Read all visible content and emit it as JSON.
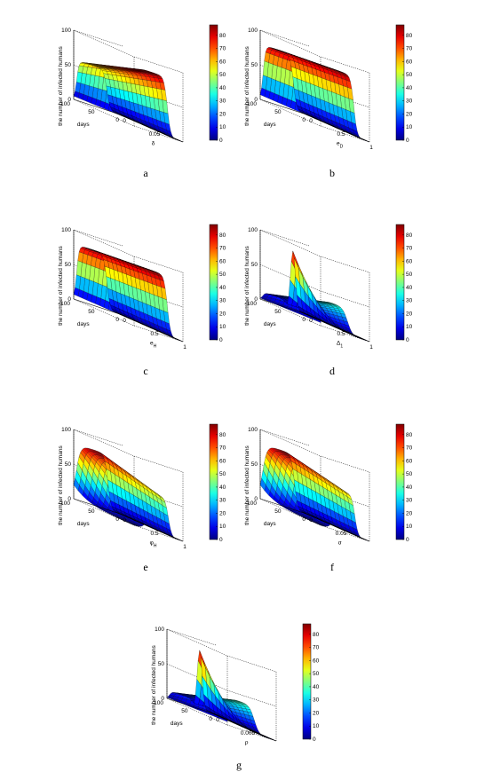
{
  "chart_data": [
    {
      "type": "surface",
      "panel": "a",
      "zlabel": "the number of infected humans",
      "xlabel": "days",
      "ylabel": "δ",
      "ylabel_sub": "",
      "x_ticks": [
        "0",
        "50",
        "100"
      ],
      "y_ticks": [
        "0",
        "0.05"
      ],
      "z_ticks": [
        "0",
        "50",
        "100"
      ],
      "xlim": [
        0,
        100
      ],
      "ylim": [
        0,
        0.1
      ],
      "zlim": [
        0,
        100
      ],
      "colorbar_ticks": [
        0,
        10,
        20,
        30,
        40,
        50,
        60,
        70,
        80
      ],
      "colorbar_range": [
        0,
        88
      ],
      "surface": {
        "peak_at_y0": 58,
        "peak_at_y1": 86,
        "mode": "ramp"
      }
    },
    {
      "type": "surface",
      "panel": "b",
      "zlabel": "the number of infected humans",
      "xlabel": "days",
      "ylabel": "e",
      "ylabel_sub": "D",
      "x_ticks": [
        "0",
        "50",
        "100"
      ],
      "y_ticks": [
        "0",
        "0.5",
        "1"
      ],
      "z_ticks": [
        "0",
        "50",
        "100"
      ],
      "xlim": [
        0,
        100
      ],
      "ylim": [
        0,
        1
      ],
      "zlim": [
        0,
        100
      ],
      "colorbar_ticks": [
        0,
        10,
        20,
        30,
        40,
        50,
        60,
        70,
        80
      ],
      "colorbar_range": [
        0,
        88
      ],
      "surface": {
        "peak_at_y0": 80,
        "peak_at_y1": 88,
        "mode": "ramp"
      }
    },
    {
      "type": "surface",
      "panel": "c",
      "zlabel": "the number of infected humans",
      "xlabel": "days",
      "ylabel": "e",
      "ylabel_sub": "H",
      "x_ticks": [
        "0",
        "50",
        "100"
      ],
      "y_ticks": [
        "0",
        "0.5",
        "1"
      ],
      "z_ticks": [
        "0",
        "50",
        "100"
      ],
      "xlim": [
        0,
        100
      ],
      "ylim": [
        0,
        1
      ],
      "zlim": [
        0,
        100
      ],
      "colorbar_ticks": [
        0,
        10,
        20,
        30,
        40,
        50,
        60,
        70,
        80
      ],
      "colorbar_range": [
        0,
        88
      ],
      "surface": {
        "peak_at_y0": 80,
        "peak_at_y1": 88,
        "mode": "ramp"
      }
    },
    {
      "type": "surface",
      "panel": "d",
      "zlabel": "the number of infected humans",
      "xlabel": "days",
      "ylabel": "Δ",
      "ylabel_sub": "1",
      "x_ticks": [
        "0",
        "50",
        "100"
      ],
      "y_ticks": [
        "0",
        "0.5",
        "1"
      ],
      "z_ticks": [
        "0",
        "50",
        "100"
      ],
      "xlim": [
        0,
        100
      ],
      "ylim": [
        0,
        1
      ],
      "zlim": [
        0,
        100
      ],
      "colorbar_ticks": [
        0,
        10,
        20,
        30,
        40,
        50,
        60,
        70,
        80
      ],
      "colorbar_range": [
        0,
        88
      ],
      "surface": {
        "peak_at_y0": 85,
        "peak_at_y1": 38,
        "mode": "spike"
      }
    },
    {
      "type": "surface",
      "panel": "e",
      "zlabel": "the number of infected humans",
      "xlabel": "days",
      "ylabel": "φ",
      "ylabel_sub": "H",
      "x_ticks": [
        "0",
        "50",
        "100"
      ],
      "y_ticks": [
        "0",
        "0.5",
        "1"
      ],
      "z_ticks": [
        "0",
        "50",
        "100"
      ],
      "xlim": [
        0,
        100
      ],
      "ylim": [
        0,
        1
      ],
      "zlim": [
        0,
        100
      ],
      "colorbar_ticks": [
        0,
        10,
        20,
        30,
        40,
        50,
        60,
        70,
        80
      ],
      "colorbar_range": [
        0,
        88
      ],
      "surface": {
        "peak_at_y0": 80,
        "peak_at_y1": 55,
        "mode": "plateau"
      }
    },
    {
      "type": "surface",
      "panel": "f",
      "zlabel": "the number of infected humans",
      "xlabel": "days",
      "ylabel": "σ",
      "ylabel_sub": "",
      "x_ticks": [
        "0",
        "50",
        "100"
      ],
      "y_ticks": [
        "0",
        "0.05"
      ],
      "z_ticks": [
        "0",
        "50",
        "100"
      ],
      "xlim": [
        0,
        100
      ],
      "ylim": [
        0,
        0.1
      ],
      "zlim": [
        0,
        100
      ],
      "colorbar_ticks": [
        0,
        10,
        20,
        30,
        40,
        50,
        60,
        70,
        80
      ],
      "colorbar_range": [
        0,
        88
      ],
      "surface": {
        "peak_at_y0": 80,
        "peak_at_y1": 60,
        "mode": "plateau"
      }
    },
    {
      "type": "surface",
      "panel": "g",
      "zlabel": "the number of infected humans",
      "xlabel": "days",
      "ylabel": "ρ",
      "ylabel_sub": "",
      "x_ticks": [
        "0",
        "50",
        "100"
      ],
      "y_ticks": [
        "0",
        "0.005"
      ],
      "z_ticks": [
        "0",
        "50",
        "100"
      ],
      "xlim": [
        0,
        100
      ],
      "ylim": [
        0,
        0.01
      ],
      "zlim": [
        0,
        100
      ],
      "colorbar_ticks": [
        0,
        10,
        20,
        30,
        40,
        50,
        60,
        70,
        80
      ],
      "colorbar_range": [
        0,
        88
      ],
      "surface": {
        "peak_at_y0": 85,
        "peak_at_y1": 40,
        "mode": "spike"
      }
    }
  ]
}
